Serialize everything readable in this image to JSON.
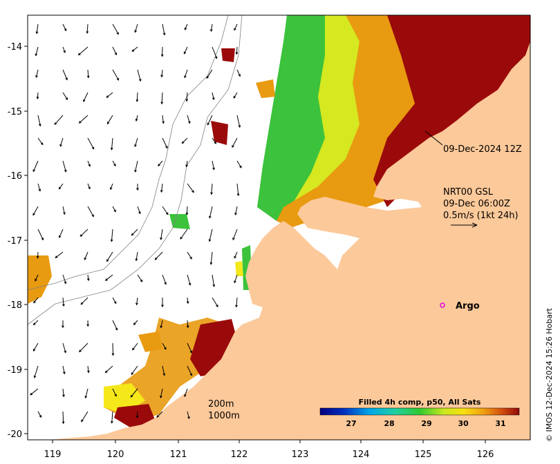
{
  "map": {
    "x_ticks": [
      "119",
      "120",
      "121",
      "122",
      "123",
      "124",
      "125",
      "126"
    ],
    "y_ticks": [
      "-14",
      "-15",
      "-16",
      "-17",
      "-18",
      "-19",
      "-20"
    ],
    "track_label": "09-Dec-2024 12Z",
    "current_source": "NRT00 GSL",
    "current_time": "09-Dec 06:00Z",
    "current_scale": "0.5m/s (1kt 24h)",
    "argo_label": "Argo",
    "isobath_200": "200m",
    "isobath_1000": "1000m",
    "colorbar_title": "Filled 4h comp, p50, All Sats",
    "colorbar_ticks": [
      "27",
      "28",
      "29",
      "30",
      "31"
    ],
    "credit": "© IMOS 12-Dec-2024 15:26 Hobart",
    "colors": {
      "land": "#fcc99a",
      "sst_hot": "#9b0a0a",
      "sst_warm": "#e89a10",
      "sst_mid": "#f5e81a",
      "sst_cool": "#3cc23c",
      "argo": "#e000e0"
    }
  }
}
